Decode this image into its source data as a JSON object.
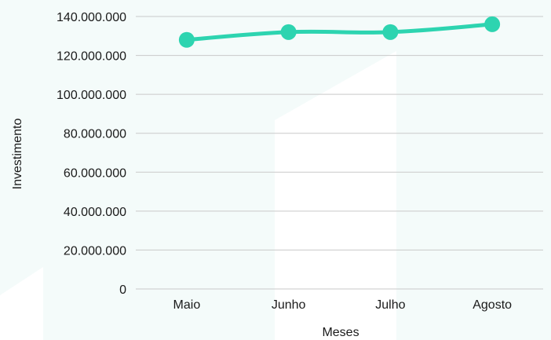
{
  "chart_data": {
    "type": "line",
    "categories": [
      "Maio",
      "Junho",
      "Julho",
      "Agosto"
    ],
    "series": [
      {
        "values": [
          128000000,
          132000000,
          132000000,
          136000000
        ]
      }
    ],
    "xlabel": "Meses",
    "ylabel": "Investimento",
    "ylim": [
      0,
      140000000
    ],
    "yticks": [
      0,
      20000000,
      40000000,
      60000000,
      80000000,
      100000000,
      120000000,
      140000000
    ],
    "ytick_labels": [
      "0",
      "20.000.000",
      "40.000.000",
      "60.000.000",
      "80.000.000",
      "100.000.000",
      "120.000.000",
      "140.000.000"
    ],
    "grid": true,
    "legend": "none",
    "colors": {
      "line": "#2dd4b0",
      "background": "#f4fbfa",
      "background_shapes": "#ffffff"
    }
  }
}
